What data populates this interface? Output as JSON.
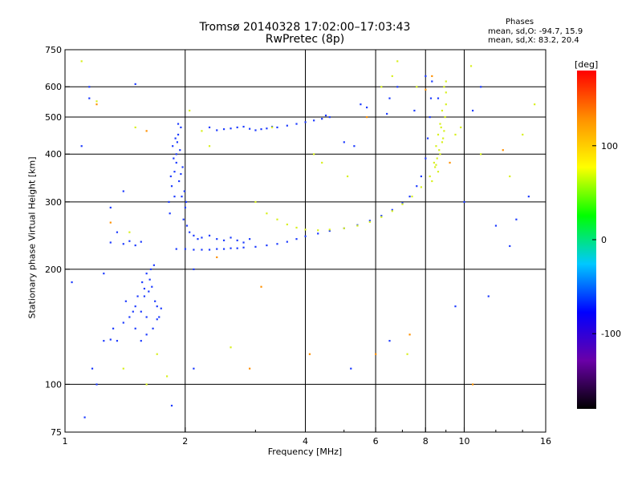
{
  "header": {
    "title_line1": "Tromsø 20140328 17:02:00–17:03:43",
    "title_line2": "RwPretec (8p)",
    "phases_title": "Phases",
    "phase_o": "mean, sd,O: -94.7, 15.9",
    "phase_x": "mean, sd,X: 83.2, 20.4"
  },
  "chart_data": {
    "type": "scatter",
    "xlabel": "Frequency [MHz]",
    "ylabel": "Stationary phase Virtual Height [km]",
    "x_scale": "log",
    "y_scale": "log",
    "xlim": [
      1,
      16
    ],
    "ylim": [
      75,
      750
    ],
    "x_ticks": [
      1,
      2,
      4,
      6,
      8,
      10,
      16
    ],
    "x_tick_labels": [
      "1",
      "2",
      "4",
      "6",
      "8",
      "10",
      "16"
    ],
    "y_ticks": [
      75,
      100,
      200,
      300,
      400,
      500,
      600,
      750
    ],
    "y_tick_labels": [
      "75",
      "100",
      "200",
      "300",
      "400",
      "500",
      "600",
      "750"
    ],
    "grid": true,
    "colorbar": {
      "label": "[deg]",
      "range": [
        -180,
        180
      ],
      "ticks": [
        100,
        0,
        -100
      ],
      "tick_labels": [
        "100",
        "0",
        "-100"
      ],
      "colors": [
        "#000000",
        "#6a00a8",
        "#0000ff",
        "#00c8ff",
        "#00ff00",
        "#ffff00",
        "#ff9000",
        "#ff0000"
      ]
    },
    "series": [
      {
        "mode": "O",
        "color": "#1e3cff",
        "points": [
          [
            1.25,
            130
          ],
          [
            1.3,
            131
          ],
          [
            1.35,
            130
          ],
          [
            1.32,
            140
          ],
          [
            1.4,
            145
          ],
          [
            1.45,
            150
          ],
          [
            1.42,
            165
          ],
          [
            1.5,
            160
          ],
          [
            1.55,
            155
          ],
          [
            1.6,
            150
          ],
          [
            1.58,
            170
          ],
          [
            1.62,
            175
          ],
          [
            1.65,
            180
          ],
          [
            1.68,
            165
          ],
          [
            1.7,
            160
          ],
          [
            1.72,
            150
          ],
          [
            1.66,
            140
          ],
          [
            1.6,
            135
          ],
          [
            1.55,
            130
          ],
          [
            1.5,
            140
          ],
          [
            1.48,
            155
          ],
          [
            1.52,
            170
          ],
          [
            1.56,
            185
          ],
          [
            1.6,
            195
          ],
          [
            1.64,
            200
          ],
          [
            1.58,
            178
          ],
          [
            1.7,
            148
          ],
          [
            1.74,
            158
          ],
          [
            1.63,
            188
          ],
          [
            1.67,
            205
          ],
          [
            1.3,
            235
          ],
          [
            1.4,
            233
          ],
          [
            1.45,
            237
          ],
          [
            1.5,
            231
          ],
          [
            1.55,
            236
          ],
          [
            1.82,
            300
          ],
          [
            1.85,
            330
          ],
          [
            1.88,
            360
          ],
          [
            1.9,
            400
          ],
          [
            1.86,
            420
          ],
          [
            1.92,
            450
          ],
          [
            1.95,
            470
          ],
          [
            1.9,
            380
          ],
          [
            1.93,
            340
          ],
          [
            1.96,
            310
          ],
          [
            2.0,
            290
          ],
          [
            1.98,
            270
          ],
          [
            2.02,
            260
          ],
          [
            1.84,
            350
          ],
          [
            1.87,
            390
          ],
          [
            1.91,
            430
          ],
          [
            1.94,
            410
          ],
          [
            1.97,
            370
          ],
          [
            1.99,
            320
          ],
          [
            2.01,
            300
          ],
          [
            1.89,
            440
          ],
          [
            1.92,
            480
          ],
          [
            1.83,
            280
          ],
          [
            1.88,
            310
          ],
          [
            1.95,
            355
          ],
          [
            2.05,
            250
          ],
          [
            2.1,
            245
          ],
          [
            2.15,
            240
          ],
          [
            2.2,
            242
          ],
          [
            2.3,
            245
          ],
          [
            2.4,
            240
          ],
          [
            2.5,
            238
          ],
          [
            2.6,
            242
          ],
          [
            2.7,
            238
          ],
          [
            2.8,
            235
          ],
          [
            2.9,
            240
          ],
          [
            1.9,
            226
          ],
          [
            2.0,
            226
          ],
          [
            2.1,
            225
          ],
          [
            2.2,
            225
          ],
          [
            2.3,
            225
          ],
          [
            2.4,
            226
          ],
          [
            2.5,
            226
          ],
          [
            2.6,
            227
          ],
          [
            2.7,
            227
          ],
          [
            2.8,
            228
          ],
          [
            3.0,
            229
          ],
          [
            3.2,
            231
          ],
          [
            3.4,
            233
          ],
          [
            3.6,
            236
          ],
          [
            3.8,
            240
          ],
          [
            4.0,
            244
          ],
          [
            4.3,
            248
          ],
          [
            4.6,
            252
          ],
          [
            5.0,
            256
          ],
          [
            5.4,
            261
          ],
          [
            5.8,
            268
          ],
          [
            6.2,
            276
          ],
          [
            6.6,
            286
          ],
          [
            7.0,
            298
          ],
          [
            7.3,
            310
          ],
          [
            7.6,
            330
          ],
          [
            7.8,
            350
          ],
          [
            8.0,
            390
          ],
          [
            8.1,
            440
          ],
          [
            8.2,
            500
          ],
          [
            8.25,
            560
          ],
          [
            8.3,
            620
          ],
          [
            2.5,
            465
          ],
          [
            2.6,
            467
          ],
          [
            2.7,
            470
          ],
          [
            2.8,
            472
          ],
          [
            2.9,
            466
          ],
          [
            3.0,
            462
          ],
          [
            3.1,
            465
          ],
          [
            3.2,
            467
          ],
          [
            3.4,
            470
          ],
          [
            3.6,
            475
          ],
          [
            3.8,
            480
          ],
          [
            4.0,
            485
          ],
          [
            4.2,
            490
          ],
          [
            4.4,
            495
          ],
          [
            4.6,
            500
          ],
          [
            2.3,
            470
          ],
          [
            2.4,
            462
          ],
          [
            3.3,
            472
          ],
          [
            4.5,
            505
          ],
          [
            1.15,
            600
          ],
          [
            1.15,
            560
          ],
          [
            1.1,
            420
          ],
          [
            1.5,
            610
          ],
          [
            1.17,
            110
          ],
          [
            1.2,
            100
          ],
          [
            1.12,
            82
          ],
          [
            1.3,
            290
          ],
          [
            1.4,
            320
          ],
          [
            1.35,
            250
          ],
          [
            1.04,
            185
          ],
          [
            1.25,
            195
          ],
          [
            5.0,
            430
          ],
          [
            5.3,
            420
          ],
          [
            6.5,
            560
          ],
          [
            6.8,
            600
          ],
          [
            7.5,
            520
          ],
          [
            8.0,
            640
          ],
          [
            8.6,
            560
          ],
          [
            10,
            300
          ],
          [
            12,
            260
          ],
          [
            13,
            230
          ],
          [
            13.5,
            270
          ],
          [
            14.5,
            310
          ],
          [
            10.5,
            520
          ],
          [
            11,
            600
          ],
          [
            11.5,
            170
          ],
          [
            9.5,
            160
          ],
          [
            6.5,
            130
          ],
          [
            5.2,
            110
          ],
          [
            2.1,
            110
          ],
          [
            1.85,
            88
          ],
          [
            2.1,
            200
          ],
          [
            6.4,
            510
          ],
          [
            5.5,
            540
          ],
          [
            5.7,
            530
          ]
        ]
      },
      {
        "mode": "X",
        "color": "#d8f020",
        "points": [
          [
            3.2,
            280
          ],
          [
            3.4,
            270
          ],
          [
            3.6,
            262
          ],
          [
            3.8,
            257
          ],
          [
            4.0,
            254
          ],
          [
            4.3,
            253
          ],
          [
            4.6,
            254
          ],
          [
            5.0,
            256
          ],
          [
            5.4,
            260
          ],
          [
            5.8,
            266
          ],
          [
            6.2,
            274
          ],
          [
            6.6,
            284
          ],
          [
            7.0,
            296
          ],
          [
            7.4,
            310
          ],
          [
            7.8,
            328
          ],
          [
            8.2,
            350
          ],
          [
            8.5,
            375
          ],
          [
            8.7,
            400
          ],
          [
            8.8,
            430
          ],
          [
            8.9,
            460
          ],
          [
            8.95,
            500
          ],
          [
            9.0,
            540
          ],
          [
            9.0,
            580
          ],
          [
            9.0,
            620
          ],
          [
            8.4,
            380
          ],
          [
            8.5,
            420
          ],
          [
            8.6,
            450
          ],
          [
            8.7,
            480
          ],
          [
            8.8,
            520
          ],
          [
            8.6,
            360
          ],
          [
            8.3,
            340
          ],
          [
            8.9,
            600
          ],
          [
            8.85,
            440
          ],
          [
            8.75,
            470
          ],
          [
            8.65,
            410
          ],
          [
            8.55,
            390
          ],
          [
            8.45,
            370
          ],
          [
            1.1,
            700
          ],
          [
            1.2,
            550
          ],
          [
            1.5,
            470
          ],
          [
            1.45,
            250
          ],
          [
            1.4,
            110
          ],
          [
            1.6,
            100
          ],
          [
            2.05,
            520
          ],
          [
            2.2,
            460
          ],
          [
            2.3,
            420
          ],
          [
            4.2,
            400
          ],
          [
            4.4,
            380
          ],
          [
            6.2,
            600
          ],
          [
            6.6,
            640
          ],
          [
            6.8,
            700
          ],
          [
            7.6,
            600
          ],
          [
            9.5,
            450
          ],
          [
            11,
            400
          ],
          [
            13,
            350
          ],
          [
            14,
            450
          ],
          [
            15,
            540
          ],
          [
            5.1,
            350
          ],
          [
            3.0,
            300
          ],
          [
            1.7,
            120
          ],
          [
            1.8,
            105
          ],
          [
            3.3,
            470
          ],
          [
            2.6,
            125
          ],
          [
            10.4,
            680
          ],
          [
            7.2,
            120
          ],
          [
            9.8,
            470
          ]
        ]
      },
      {
        "mode": "other",
        "color": "#ff9000",
        "points": [
          [
            1.3,
            265
          ],
          [
            1.2,
            540
          ],
          [
            3.1,
            180
          ],
          [
            2.4,
            215
          ],
          [
            6.0,
            120
          ],
          [
            7.3,
            135
          ],
          [
            8.0,
            590
          ],
          [
            8.3,
            640
          ],
          [
            10.5,
            100
          ],
          [
            5.7,
            500
          ],
          [
            1.6,
            460
          ],
          [
            4.1,
            120
          ],
          [
            2.9,
            110
          ],
          [
            12.5,
            410
          ],
          [
            9.2,
            380
          ]
        ]
      }
    ]
  }
}
